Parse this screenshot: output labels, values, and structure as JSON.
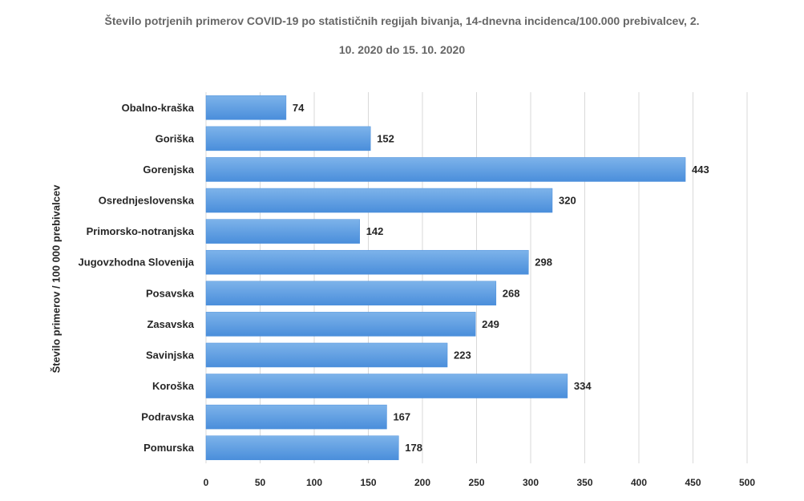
{
  "chart_data": {
    "type": "bar",
    "orientation": "horizontal",
    "title_line1": "Število potrjenih primerov COVID-19 po statističnih regijah bivanja, 14-dnevna incidenca/100.000 prebivalcev, 2.",
    "title_line2": "10. 2020 do 15. 10. 2020",
    "xlabel": "",
    "ylabel": "Število primerov / 100 000 prebivalcev",
    "categories": [
      "Obalno-kraška",
      "Goriška",
      "Gorenjska",
      "Osrednjeslovenska",
      "Primorsko-notranjska",
      "Jugovzhodna Slovenija",
      "Posavska",
      "Zasavska",
      "Savinjska",
      "Koroška",
      "Podravska",
      "Pomurska"
    ],
    "values": [
      74,
      152,
      443,
      320,
      142,
      298,
      268,
      249,
      223,
      334,
      167,
      178
    ],
    "xlim": [
      0,
      500
    ],
    "xticks": [
      0,
      50,
      100,
      150,
      200,
      250,
      300,
      350,
      400,
      450,
      500
    ],
    "grid": true,
    "bar_color": "#4a8edb",
    "bar_color_light": "#7db3ea",
    "grid_color": "#d9d9d9"
  }
}
